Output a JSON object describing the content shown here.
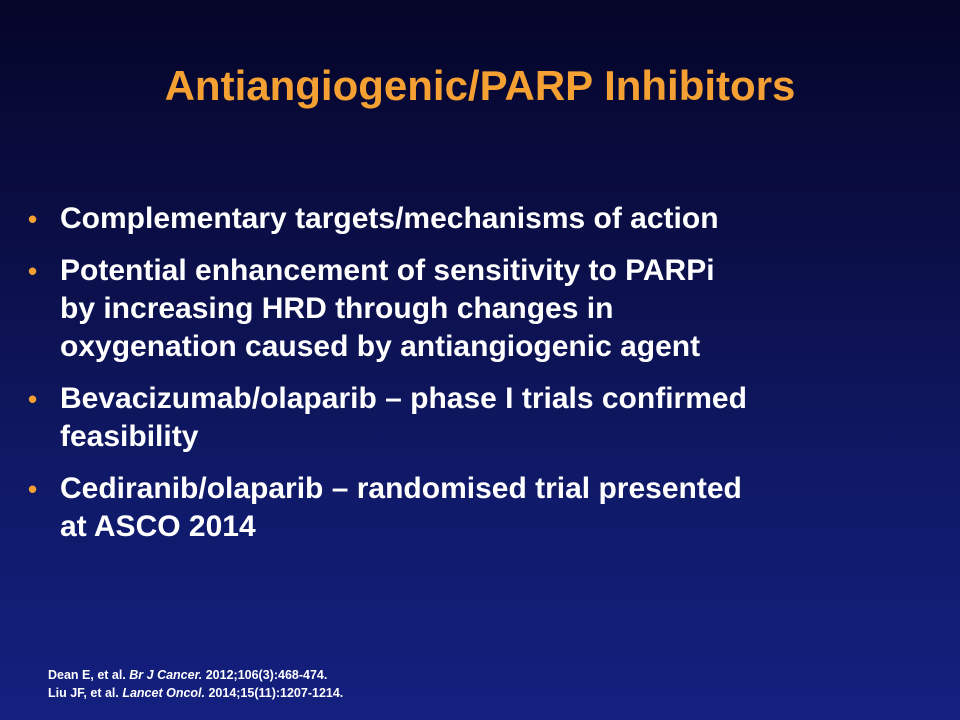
{
  "slide": {
    "title": "Antiangiogenic/PARP Inhibitors",
    "bullet_marker": "•",
    "bullets": [
      {
        "line1": "Complementary targets/mechanisms of action",
        "line2": "",
        "line3": ""
      },
      {
        "line1": "Potential enhancement of sensitivity to PARPi",
        "line2": "by increasing HRD through changes in",
        "line3": "oxygenation caused by antiangiogenic agent"
      },
      {
        "line1": "Bevacizumab/olaparib – phase I trials confirmed",
        "line2": "feasibility",
        "line3": ""
      },
      {
        "line1": "Cediranib/olaparib – randomised trial presented",
        "line2": "at ASCO 2014",
        "line3": ""
      }
    ],
    "references": [
      {
        "authors": "Dean E, et al. ",
        "journal": "Br J Cancer.",
        "details": " 2012;106(3):468-474."
      },
      {
        "authors": "Liu JF, et al. ",
        "journal": "Lancet Oncol.",
        "details": " 2014;15(11):1207-1214."
      }
    ]
  },
  "colors": {
    "title": "#f5a033",
    "bullet_marker": "#f5a033",
    "body_text": "#ffffff",
    "background_top": "#050529",
    "background_bottom": "#142080"
  }
}
